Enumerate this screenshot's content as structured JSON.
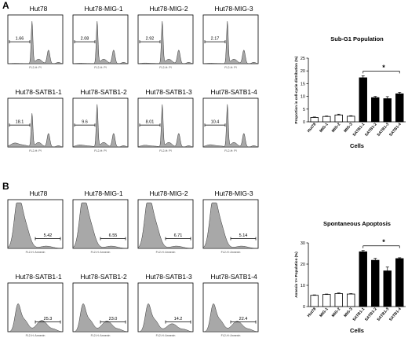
{
  "panels": {
    "a": "A",
    "b": "B"
  },
  "chart_data": [
    {
      "type": "histogram",
      "panel": "A",
      "xaxis_label": "FL2-H: PI",
      "hist_style": "cellcycle",
      "grid": [
        {
          "title": "Hut78",
          "marker": "1.66"
        },
        {
          "title": "Hut78-MIG-1",
          "marker": "2.08"
        },
        {
          "title": "Hut78-MIG-2",
          "marker": "2.92"
        },
        {
          "title": "Hut78-MIG-3",
          "marker": "2.17"
        },
        {
          "title": "Hut78-SATB1-1",
          "marker": "18.1"
        },
        {
          "title": "Hut78-SATB1-2",
          "marker": "9.6"
        },
        {
          "title": "Hut78-SATB1-3",
          "marker": "8.01"
        },
        {
          "title": "Hut78-SATB1-4",
          "marker": "10.4"
        }
      ]
    },
    {
      "type": "histogram",
      "panel": "B",
      "xaxis_label": "FL2-H: Annexin",
      "hist_style": "apoptosis",
      "grid": [
        {
          "title": "Hut78",
          "marker": "5.42"
        },
        {
          "title": "Hut78-MIG-1",
          "marker": "6.55"
        },
        {
          "title": "Hut78-MIG-2",
          "marker": "6.71"
        },
        {
          "title": "Hut78-MIG-3",
          "marker": "5.14"
        },
        {
          "title": "Hut78-SATB1-1",
          "marker": "25.3"
        },
        {
          "title": "Hut78-SATB1-2",
          "marker": "23.0"
        },
        {
          "title": "Hut78-SATB1-3",
          "marker": "14.2"
        },
        {
          "title": "Hut78-SATB1-4",
          "marker": "22.4"
        }
      ]
    },
    {
      "type": "bar",
      "panel": "A",
      "title": "Sub-G1 Population",
      "xlabel": "Cells",
      "ylabel": "Proportion in cell-cycle distribution (%)",
      "categories": [
        "Hut78",
        "MIG-1",
        "MIG-2",
        "MIG-3",
        "SATB1-1",
        "SATB1-2",
        "SATB1-3",
        "SATB1-4"
      ],
      "values": [
        1.7,
        2.1,
        2.7,
        2.2,
        17.3,
        9.5,
        9.1,
        11.0
      ],
      "errors": [
        0.2,
        0.2,
        0.3,
        0.2,
        0.8,
        0.5,
        0.8,
        0.6
      ],
      "fill": [
        "white",
        "white",
        "white",
        "white",
        "black",
        "black",
        "black",
        "black"
      ],
      "ylim": [
        0,
        25
      ],
      "yticks": [
        0,
        5,
        10,
        15,
        20,
        25
      ],
      "significance": "*"
    },
    {
      "type": "bar",
      "panel": "B",
      "title": "Spontaneous Apoptosis",
      "xlabel": "Cells",
      "ylabel": "Annexin V+ Population (%)",
      "categories": [
        "Hut78",
        "MIG-1",
        "MIG-2",
        "MIG-3",
        "SATB1-1",
        "SATB1-2",
        "SATB1-3",
        "SATB1-4"
      ],
      "values": [
        5.3,
        5.7,
        6.1,
        5.9,
        25.8,
        21.8,
        16.8,
        22.6
      ],
      "errors": [
        0.2,
        0.2,
        0.3,
        0.2,
        0.6,
        0.9,
        1.8,
        0.4
      ],
      "fill": [
        "white",
        "white",
        "white",
        "white",
        "black",
        "black",
        "black",
        "black"
      ],
      "ylim": [
        0,
        30
      ],
      "yticks": [
        0,
        10,
        20,
        30
      ],
      "significance": "*"
    }
  ],
  "colors": {
    "histogram_fill": "#a8a8a8",
    "treated_bar": "#000000",
    "control_bar": "#ffffff"
  }
}
